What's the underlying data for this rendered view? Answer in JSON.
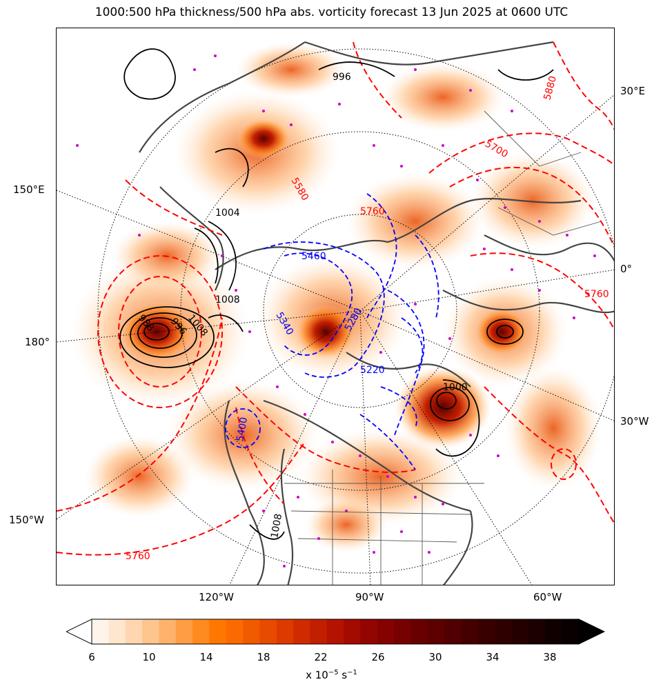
{
  "title": "1000:500 hPa thickness/500 hPa abs. vorticity forecast 13 Jun 2025 at 0600 UTC",
  "graticule_labels": {
    "right": [
      "30°E",
      "0°",
      "30°W"
    ],
    "left": [
      "150°E",
      "180°",
      "150°W"
    ],
    "bottom": [
      "120°W",
      "90°W",
      "60°W"
    ]
  },
  "contour_labels": {
    "thickness_red": [
      "5880",
      "5700",
      "5760",
      "5760",
      "5580",
      "5760"
    ],
    "thickness_blue": [
      "5340",
      "5280",
      "5220",
      "5460",
      "5400"
    ],
    "pressure_black": [
      "996",
      "1004",
      "1008",
      "1008",
      "996",
      "988",
      "1000",
      "1008"
    ]
  },
  "colorbar": {
    "ticks": [
      "6",
      "10",
      "14",
      "18",
      "22",
      "26",
      "30",
      "34",
      "38"
    ],
    "label_prefix": "x 10",
    "label_exponent": "−5",
    "label_unit": "s",
    "label_unit_exponent": "−1",
    "colors": [
      "#fff4ea",
      "#ffe6cf",
      "#ffd6b0",
      "#ffc58e",
      "#ffb26b",
      "#ff9d45",
      "#ff8a20",
      "#ff7700",
      "#fb6a00",
      "#f25a00",
      "#e84a00",
      "#dd3a00",
      "#d02b00",
      "#c21e00",
      "#b31300",
      "#a30a00",
      "#930500",
      "#840300",
      "#760100",
      "#690000",
      "#5c0000",
      "#500000",
      "#440000",
      "#390000",
      "#2e0000",
      "#240000",
      "#1a0000",
      "#100000",
      "#080000"
    ]
  },
  "colors": {
    "thickness_warm": "#ff0000",
    "thickness_cold": "#0000ff",
    "pressure": "#000000",
    "coast": "#444444",
    "markers": "#cc00cc"
  }
}
